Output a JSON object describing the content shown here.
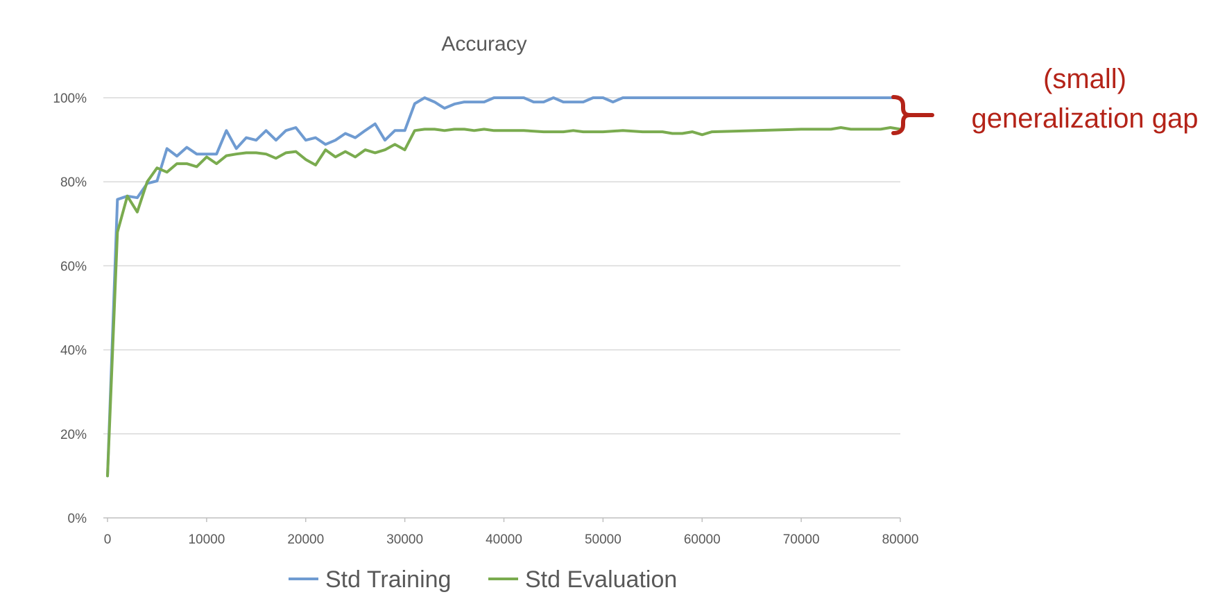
{
  "chart_data": {
    "type": "line",
    "title": "Accuracy",
    "xlabel": "",
    "ylabel": "",
    "xlim": [
      0,
      80000
    ],
    "ylim": [
      0,
      1
    ],
    "x_ticks": [
      "0",
      "10000",
      "20000",
      "30000",
      "40000",
      "50000",
      "60000",
      "70000",
      "80000"
    ],
    "y_ticks": [
      "0%",
      "20%",
      "40%",
      "60%",
      "80%",
      "100%"
    ],
    "grid": "horizontal",
    "legend": "bottom",
    "series": [
      {
        "name": "Std Training",
        "color": "#6f9bd1",
        "x": [
          0,
          1000,
          2000,
          3000,
          4000,
          5000,
          6000,
          7000,
          8000,
          9000,
          10000,
          11000,
          12000,
          13000,
          14000,
          15000,
          16000,
          17000,
          18000,
          19000,
          20000,
          21000,
          22000,
          23000,
          24000,
          25000,
          26000,
          27000,
          28000,
          29000,
          30000,
          31000,
          32000,
          33000,
          34000,
          35000,
          36000,
          37000,
          38000,
          39000,
          40000,
          41000,
          42000,
          43000,
          44000,
          45000,
          46000,
          47000,
          48000,
          49000,
          50000,
          51000,
          52000,
          53000,
          60000,
          70000,
          80000
        ],
        "values": [
          0.1,
          0.758,
          0.766,
          0.762,
          0.796,
          0.802,
          0.879,
          0.861,
          0.882,
          0.866,
          0.866,
          0.866,
          0.922,
          0.879,
          0.905,
          0.899,
          0.922,
          0.899,
          0.922,
          0.929,
          0.899,
          0.905,
          0.889,
          0.899,
          0.915,
          0.905,
          0.922,
          0.938,
          0.899,
          0.922,
          0.922,
          0.986,
          1.0,
          0.99,
          0.975,
          0.985,
          0.99,
          0.99,
          0.99,
          1.0,
          1.0,
          1.0,
          1.0,
          0.99,
          0.99,
          1.0,
          0.99,
          0.99,
          0.99,
          1.0,
          1.0,
          0.99,
          1.0,
          1.0,
          1.0,
          1.0,
          1.0
        ]
      },
      {
        "name": "Std Evaluation",
        "color": "#7aab4f",
        "x": [
          0,
          1000,
          2000,
          3000,
          4000,
          5000,
          6000,
          7000,
          8000,
          9000,
          10000,
          11000,
          12000,
          13000,
          14000,
          15000,
          16000,
          17000,
          18000,
          19000,
          20000,
          21000,
          22000,
          23000,
          24000,
          25000,
          26000,
          27000,
          28000,
          29000,
          30000,
          31000,
          32000,
          33000,
          34000,
          35000,
          36000,
          37000,
          38000,
          39000,
          40000,
          42000,
          44000,
          45000,
          46000,
          47000,
          48000,
          49000,
          50000,
          52000,
          54000,
          55000,
          56000,
          57000,
          58000,
          59000,
          60000,
          61000,
          70000,
          72000,
          73000,
          74000,
          75000,
          76000,
          77000,
          78000,
          79000,
          80000
        ],
        "values": [
          0.1,
          0.68,
          0.766,
          0.728,
          0.8,
          0.833,
          0.823,
          0.843,
          0.843,
          0.836,
          0.859,
          0.843,
          0.862,
          0.866,
          0.869,
          0.869,
          0.866,
          0.856,
          0.869,
          0.872,
          0.853,
          0.84,
          0.876,
          0.859,
          0.872,
          0.859,
          0.876,
          0.869,
          0.876,
          0.889,
          0.876,
          0.922,
          0.925,
          0.925,
          0.922,
          0.925,
          0.925,
          0.922,
          0.925,
          0.922,
          0.922,
          0.922,
          0.919,
          0.919,
          0.919,
          0.922,
          0.919,
          0.919,
          0.919,
          0.922,
          0.919,
          0.919,
          0.919,
          0.915,
          0.915,
          0.919,
          0.912,
          0.919,
          0.925,
          0.925,
          0.925,
          0.929,
          0.925,
          0.925,
          0.925,
          0.925,
          0.929,
          0.925
        ]
      }
    ]
  },
  "annotation": {
    "line1": "(small)",
    "line2": "generalization gap",
    "color": "#b42318"
  }
}
